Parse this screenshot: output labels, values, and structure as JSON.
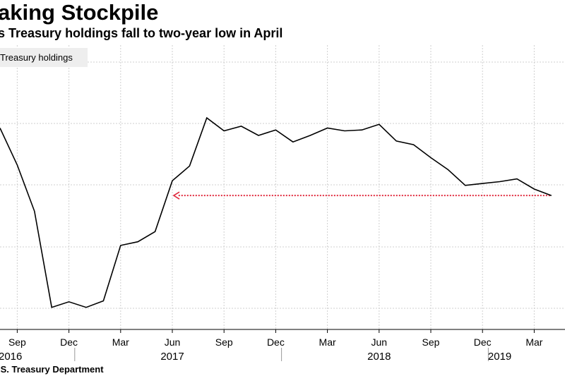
{
  "header": {
    "title": "aking Stockpile",
    "subtitle": "s Treasury holdings fall to two-year low in April"
  },
  "footer": {
    "source": ".S. Treasury Department"
  },
  "chart_data": {
    "type": "line",
    "title": "aking Stockpile",
    "subtitle": "s Treasury holdings fall to two-year low in April",
    "legend": {
      "label": "Treasury holdings",
      "placement": "top-left"
    },
    "x_tick_labels": [
      {
        "label": "Sep",
        "month": "2016-09"
      },
      {
        "label": "Dec",
        "month": "2016-12"
      },
      {
        "label": "Mar",
        "month": "2017-03"
      },
      {
        "label": "Jun",
        "month": "2017-06"
      },
      {
        "label": "Sep",
        "month": "2017-09"
      },
      {
        "label": "Dec",
        "month": "2017-12"
      },
      {
        "label": "Mar",
        "month": "2018-03"
      },
      {
        "label": "Jun",
        "month": "2018-06"
      },
      {
        "label": "Sep",
        "month": "2018-09"
      },
      {
        "label": "Dec",
        "month": "2018-12"
      },
      {
        "label": "Mar",
        "month": "2019-03"
      }
    ],
    "year_labels": [
      {
        "label": "2016",
        "month": "2016-09"
      },
      {
        "label": "2017",
        "month": "2017-06"
      },
      {
        "label": "2018",
        "month": "2018-06"
      },
      {
        "label": "2019",
        "month": "2019-01"
      }
    ],
    "ylim": [
      1.0,
      1.35
    ],
    "grid": true,
    "series": [
      {
        "x": [
          "2016-08",
          "2016-09",
          "2016-10",
          "2016-11",
          "2016-12",
          "2017-01",
          "2017-02",
          "2017-03",
          "2017-04",
          "2017-05",
          "2017-06",
          "2017-07",
          "2017-08",
          "2017-09",
          "2017-10",
          "2017-11",
          "2017-12",
          "2018-01",
          "2018-02",
          "2018-03",
          "2018-04",
          "2018-05",
          "2018-06",
          "2018-07",
          "2018-08",
          "2018-09",
          "2018-10",
          "2018-11",
          "2018-12",
          "2019-01",
          "2019-02",
          "2019-03",
          "2019-04"
        ],
        "values": [
          1.245,
          1.205,
          1.155,
          1.051,
          1.057,
          1.051,
          1.058,
          1.118,
          1.122,
          1.133,
          1.188,
          1.204,
          1.256,
          1.242,
          1.247,
          1.237,
          1.243,
          1.23,
          1.237,
          1.245,
          1.242,
          1.243,
          1.249,
          1.231,
          1.227,
          1.213,
          1.2,
          1.183,
          1.185,
          1.187,
          1.19,
          1.179,
          1.172
        ]
      }
    ],
    "annotation": {
      "type": "horizontal-arrow",
      "color": "#e0283c",
      "from_month": "2019-04",
      "to_month": "2017-06",
      "value": 1.172
    }
  }
}
